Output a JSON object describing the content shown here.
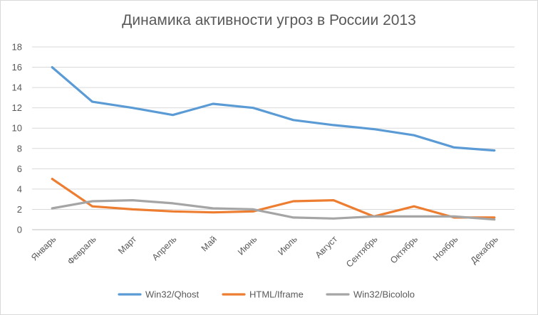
{
  "chart_data": {
    "type": "line",
    "title": "Динамика активности угроз в России 2013",
    "xlabel": "",
    "ylabel": "",
    "categories": [
      "Январь",
      "Февраль",
      "Март",
      "Апрель",
      "Май",
      "Июнь",
      "Июль",
      "Август",
      "Сентябрь",
      "Октябрь",
      "Ноябрь",
      "Декабрь"
    ],
    "ylim": [
      0,
      18
    ],
    "yticks": [
      "0",
      "2",
      "4",
      "6",
      "8",
      "10",
      "12",
      "14",
      "16",
      "18"
    ],
    "grid": true,
    "legend_position": "bottom",
    "series": [
      {
        "name": "Win32/Qhost",
        "color": "#5b9bd5",
        "values": [
          16.0,
          12.6,
          12.0,
          11.3,
          12.4,
          12.0,
          10.8,
          10.3,
          9.9,
          9.3,
          8.1,
          7.8
        ]
      },
      {
        "name": "HTML/Iframe",
        "color": "#ed7d31",
        "values": [
          5.0,
          2.3,
          2.0,
          1.8,
          1.7,
          1.8,
          2.8,
          2.9,
          1.3,
          2.3,
          1.2,
          1.2
        ]
      },
      {
        "name": "Win32/Bicololo",
        "color": "#a5a5a5",
        "values": [
          2.1,
          2.8,
          2.9,
          2.6,
          2.1,
          2.0,
          1.2,
          1.1,
          1.3,
          1.3,
          1.3,
          1.0
        ]
      }
    ]
  }
}
